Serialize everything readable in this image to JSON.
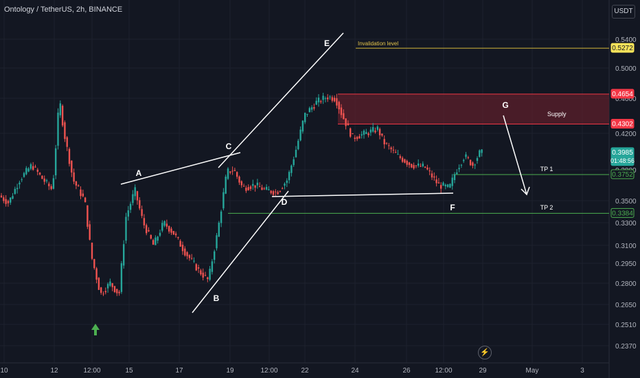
{
  "header": {
    "title": "Ontology / TetherUS, 2h, BINANCE",
    "unit": "USDT"
  },
  "colors": {
    "background": "#131722",
    "up": "#26a69a",
    "down": "#ef5350",
    "grid": "#1e222d",
    "axis_text": "#b2b5be",
    "supply_zone": "#5c1f2b"
  },
  "chart_data": {
    "type": "candlestick",
    "y_ticks": [
      "0.5400",
      "0.5000",
      "0.4600",
      "0.4200",
      "0.3800",
      "0.3500",
      "0.3300",
      "0.3100",
      "0.2950",
      "0.2800",
      "0.2650",
      "0.2510",
      "0.2370"
    ],
    "x_ticks": [
      "10",
      "12",
      "12:00",
      "15",
      "17",
      "19",
      "12:00",
      "22",
      "24",
      "26",
      "12:00",
      "29",
      "May",
      "3"
    ],
    "price_tags": [
      {
        "value": "0.5272",
        "style": "invalidation"
      },
      {
        "value": "0.4654",
        "style": "supply"
      },
      {
        "value": "0.4302",
        "style": "supply"
      },
      {
        "value": "0.3985",
        "style": "current",
        "sub": "01:48:56"
      },
      {
        "value": "0.3752",
        "style": "tp"
      },
      {
        "value": "0.3384",
        "style": "tp"
      }
    ],
    "annotations": {
      "invalidation": "Invalidation level",
      "supply": "Supply",
      "tp1": "TP 1",
      "tp2": "TP 2",
      "points": [
        "A",
        "B",
        "C",
        "D",
        "E",
        "F",
        "G"
      ]
    }
  }
}
